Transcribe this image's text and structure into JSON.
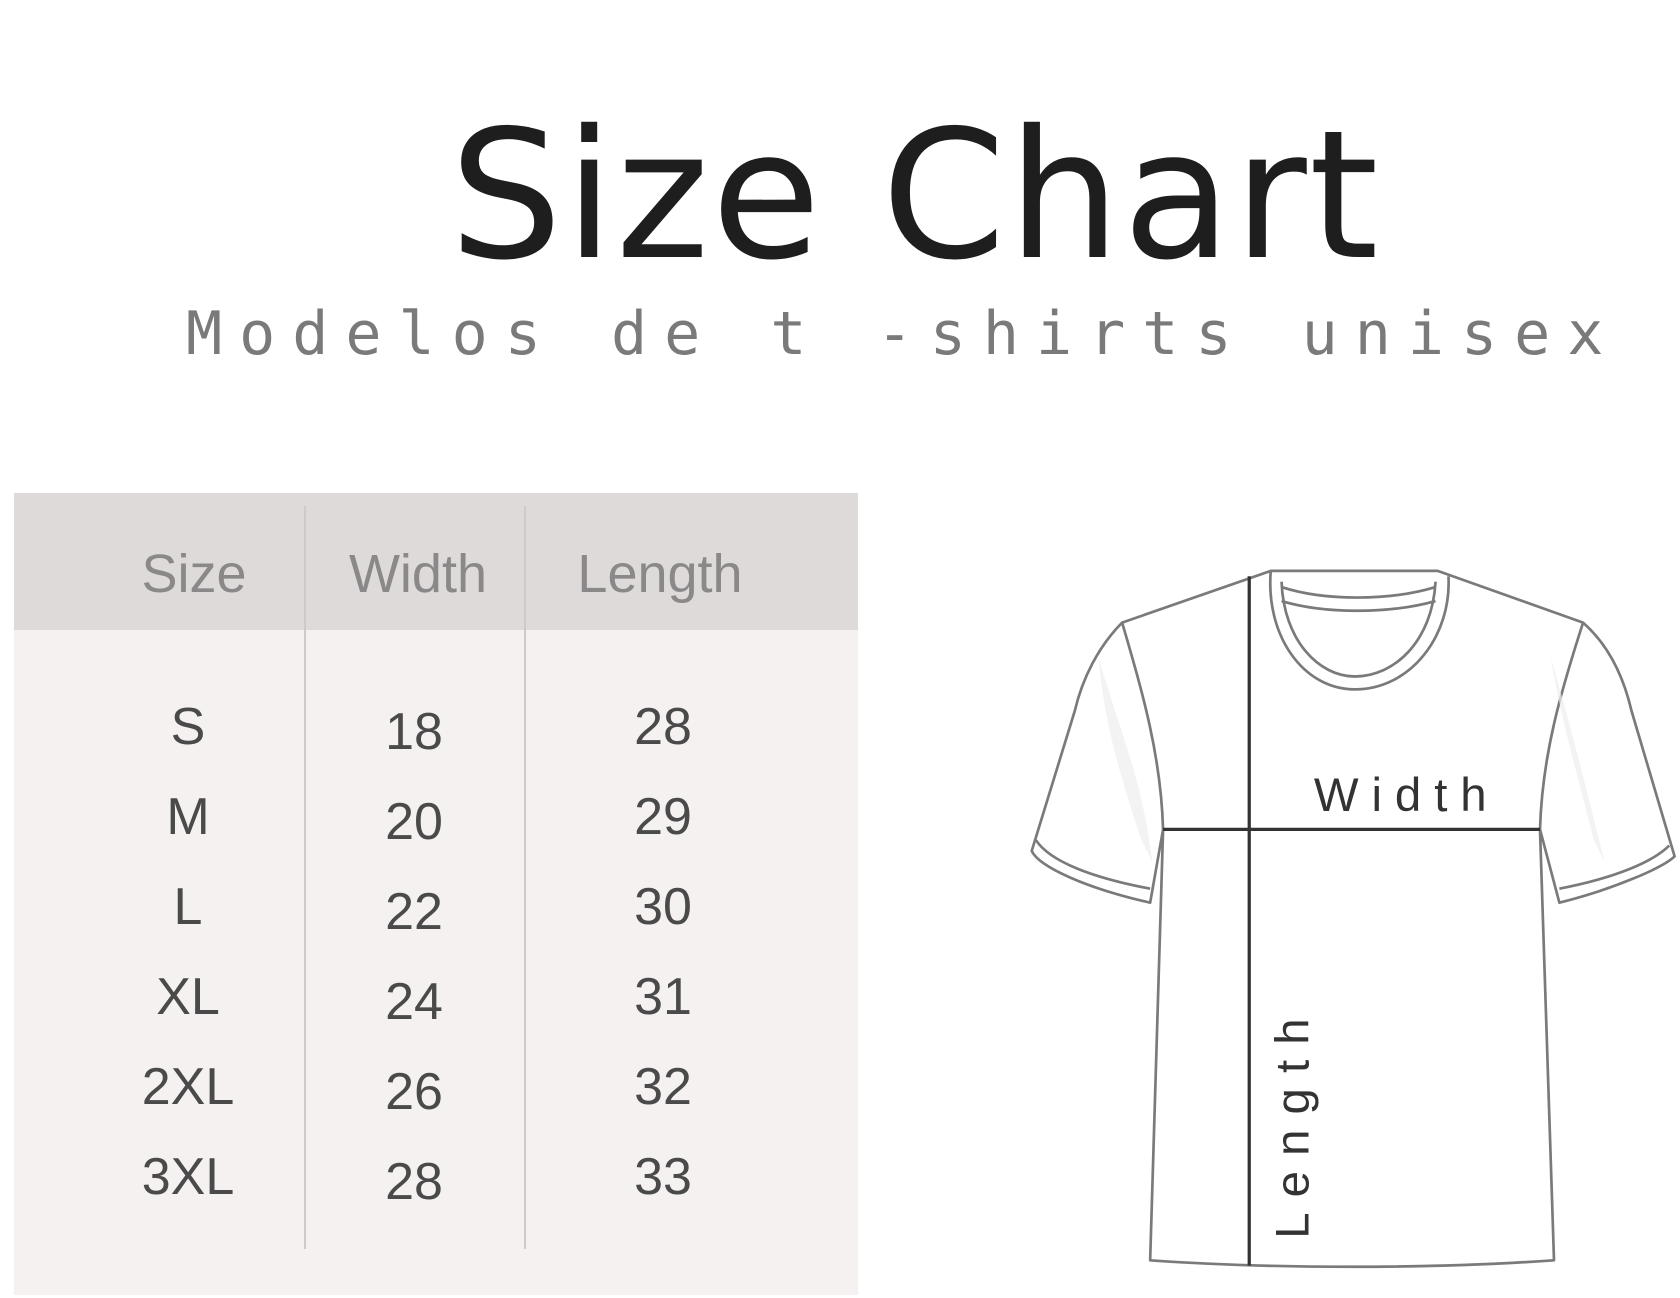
{
  "title": "Size Chart",
  "subtitle": "Modelos de t -shirts unisex",
  "table": {
    "headers": [
      "Size",
      "Width",
      "Length"
    ],
    "rows": [
      [
        "S",
        "18",
        "28"
      ],
      [
        "M",
        "20",
        "29"
      ],
      [
        "L",
        "22",
        "30"
      ],
      [
        "XL",
        "24",
        "31"
      ],
      [
        "2XL",
        "26",
        "32"
      ],
      [
        "3XL",
        "28",
        "33"
      ]
    ]
  },
  "diagram": {
    "width_label": "Width",
    "length_label": "Length"
  },
  "colors": {
    "header_bg": "#dedad9",
    "body_bg": "#f5f1f1",
    "title": "#1e1e1e",
    "subtitle": "#7a7a7a"
  }
}
